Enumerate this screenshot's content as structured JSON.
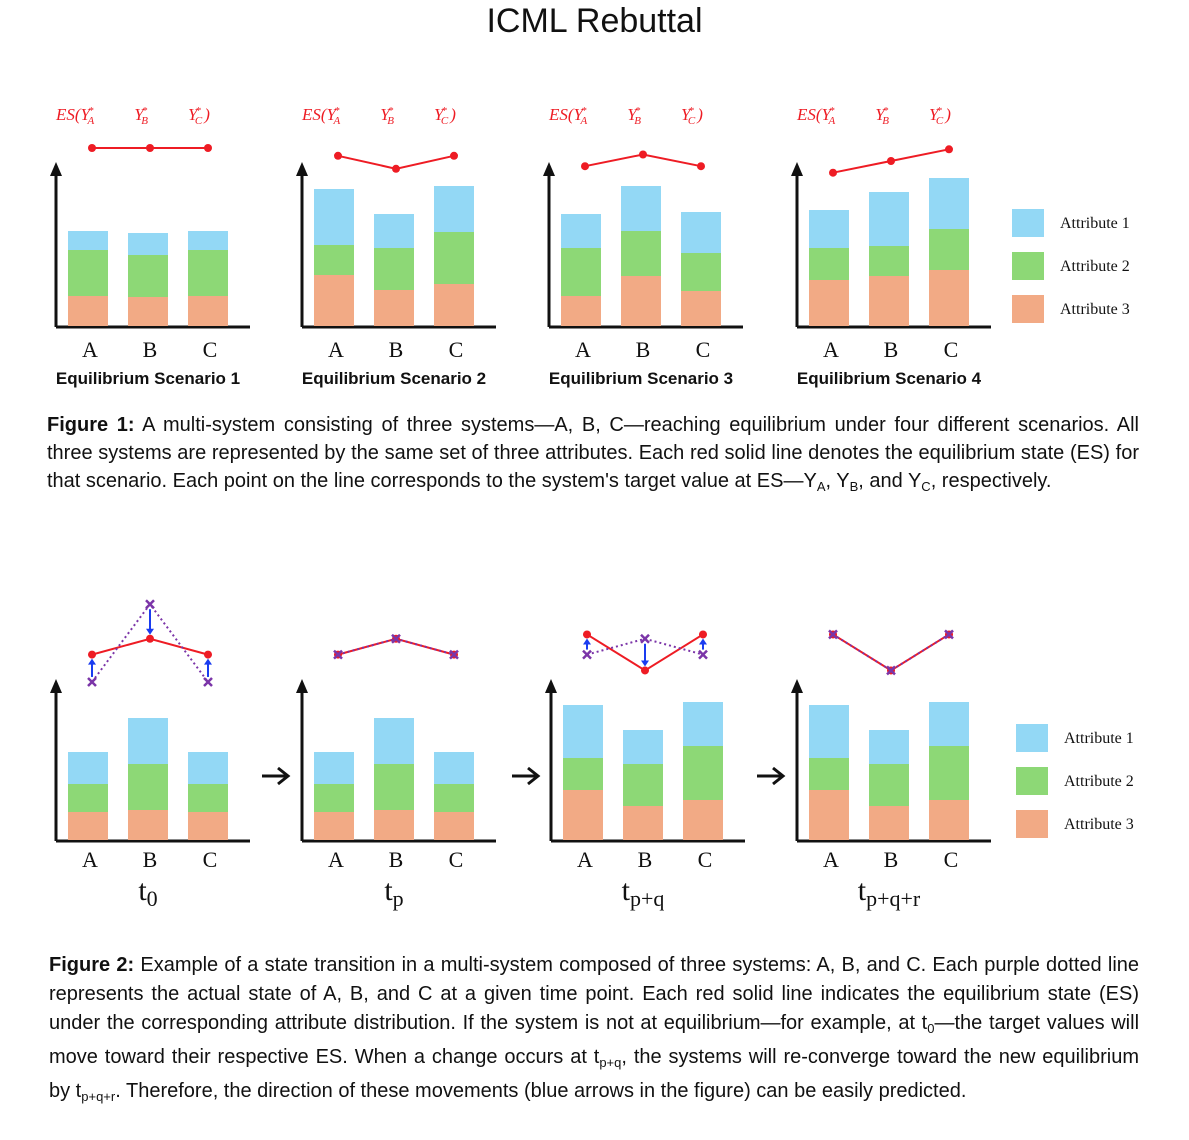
{
  "title": "ICML Rebuttal",
  "colors": {
    "attr1": "#93d8f5",
    "attr2": "#8dd876",
    "attr3": "#f2aa85",
    "es_line": "#ee1c24",
    "actual_line": "#7b35a8",
    "arrow": "#1a3cf0"
  },
  "legend": [
    "Attribute 1",
    "Attribute 2",
    "Attribute 3"
  ],
  "systems": [
    "A",
    "B",
    "C"
  ],
  "es_label": {
    "prefix": "ES(",
    "ya": "Y",
    "ya_sub": "A",
    "yb": "Y",
    "yb_sub": "B",
    "yc": "Y",
    "yc_sub": "C",
    "suffix": ")"
  },
  "figure1": {
    "scenarios": [
      {
        "label": "Equilibrium Scenario 1",
        "bars": [
          [
            95,
            46,
            30
          ],
          [
            93,
            42,
            29
          ],
          [
            95,
            46,
            30
          ]
        ],
        "es": [
          1.0,
          1.0,
          1.0
        ]
      },
      {
        "label": "Equilibrium Scenario 2",
        "bars": [
          [
            137,
            30,
            51
          ],
          [
            112,
            42,
            36
          ],
          [
            140,
            52,
            42
          ]
        ],
        "es": [
          0.88,
          0.68,
          0.88
        ]
      },
      {
        "label": "Equilibrium Scenario 3",
        "bars": [
          [
            112,
            48,
            30
          ],
          [
            140,
            45,
            50
          ],
          [
            114,
            38,
            35
          ]
        ],
        "es": [
          0.72,
          0.9,
          0.72
        ]
      },
      {
        "label": "Equilibrium Scenario 4",
        "bars": [
          [
            116,
            32,
            46
          ],
          [
            134,
            30,
            50
          ],
          [
            148,
            41,
            56
          ]
        ],
        "es": [
          0.62,
          0.8,
          0.98
        ]
      }
    ],
    "caption_label": "Figure 1:",
    "caption_text": "A multi-system consisting of three systems—A, B, C—reaching equilibrium under four different scenarios. All three systems are represented by the same set of three attributes. Each red solid line denotes the equilibrium state (ES) for that scenario. Each point on the line corresponds to the system's target value at ES—",
    "caption_ya": "Y",
    "caption_sep1": ", ",
    "caption_yb": "Y",
    "caption_sep2": ", and ",
    "caption_yc": "Y",
    "caption_end": ", respectively."
  },
  "figure2": {
    "panels": [
      {
        "time": "t",
        "time_sub": "0",
        "bars": [
          [
            88,
            28,
            28
          ],
          [
            122,
            46,
            30
          ],
          [
            88,
            28,
            28
          ]
        ],
        "es": [
          0.7,
          0.92,
          0.7
        ],
        "actual": [
          0.32,
          1.4,
          0.32
        ]
      },
      {
        "time": "t",
        "time_sub": "p",
        "bars": [
          [
            88,
            28,
            28
          ],
          [
            122,
            46,
            30
          ],
          [
            88,
            28,
            28
          ]
        ],
        "es": [
          0.7,
          0.92,
          0.7
        ],
        "actual": [
          0.7,
          0.92,
          0.7
        ]
      },
      {
        "time": "t",
        "time_sub": "p+q",
        "bars": [
          [
            135,
            32,
            50
          ],
          [
            110,
            42,
            34
          ],
          [
            138,
            54,
            40
          ]
        ],
        "es": [
          0.98,
          0.48,
          0.98
        ],
        "actual": [
          0.7,
          0.92,
          0.7
        ]
      },
      {
        "time": "t",
        "time_sub": "p+q+r",
        "bars": [
          [
            135,
            32,
            50
          ],
          [
            110,
            42,
            34
          ],
          [
            138,
            54,
            40
          ]
        ],
        "es": [
          0.98,
          0.48,
          0.98
        ],
        "actual": [
          0.98,
          0.48,
          0.98
        ]
      }
    ],
    "caption_label": "Figure 2:",
    "caption_part1": "Example of a state transition in a multi-system composed of three systems: A, B, and C. Each purple dotted line represents the actual state of A, B, and C at a given time point. Each red solid line indicates the equilibrium state (ES) under the corresponding attribute distribution. If the system is not at equilibrium—for example, at t",
    "caption_sub1": "0",
    "caption_part2": "—the target values will move toward their respective ES. When a change occurs at t",
    "caption_sub2": "p+q",
    "caption_part3": ", the systems will re-converge toward the new equilibrium by t",
    "caption_sub3": "p+q+r",
    "caption_part4": ". Therefore, the direction of these movements (blue arrows in the figure) can be easily predicted."
  }
}
